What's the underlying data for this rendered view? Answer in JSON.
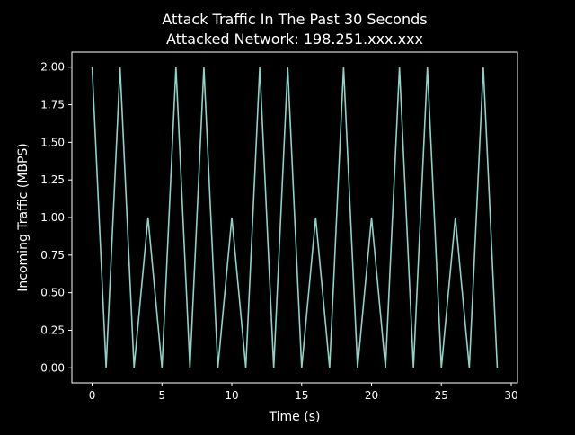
{
  "chart_data": {
    "type": "line",
    "title_line1": "Attack Traffic In The Past 30 Seconds",
    "title_line2": "Attacked Network: 198.251.xxx.xxx",
    "xlabel": "Time (s)",
    "ylabel": "Incoming Traffic (MBPS)",
    "xlim": [
      -1.45,
      30.45
    ],
    "ylim": [
      -0.1,
      2.1
    ],
    "xticks": [
      0,
      5,
      10,
      15,
      20,
      25,
      30
    ],
    "xtick_labels": [
      "0",
      "5",
      "10",
      "15",
      "20",
      "25",
      "30"
    ],
    "yticks": [
      0,
      0.25,
      0.5,
      0.75,
      1.0,
      1.25,
      1.5,
      1.75,
      2.0
    ],
    "ytick_labels": [
      "0.00",
      "0.25",
      "0.50",
      "0.75",
      "1.00",
      "1.25",
      "1.50",
      "1.75",
      "2.00"
    ],
    "grid": false,
    "legend": "none",
    "series": [
      {
        "color": "#8dd3c7",
        "x": [
          0,
          1,
          2,
          3,
          4,
          5,
          6,
          7,
          8,
          9,
          10,
          11,
          12,
          13,
          14,
          15,
          16,
          17,
          18,
          19,
          20,
          21,
          22,
          23,
          24,
          25,
          26,
          27,
          28,
          29
        ],
        "values": [
          2,
          0,
          2,
          0,
          1,
          0,
          2,
          0,
          2,
          0,
          1,
          0,
          2,
          0,
          2,
          0,
          1,
          0,
          2,
          0,
          1,
          0,
          2,
          0,
          2,
          0,
          1,
          0,
          2,
          0
        ]
      }
    ]
  },
  "colors": {
    "background": "#000000",
    "foreground": "#ffffff",
    "line": "#8dd3c7"
  }
}
